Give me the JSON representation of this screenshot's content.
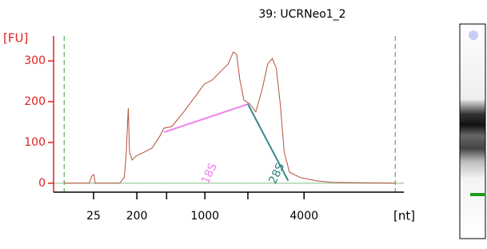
{
  "chart_data": {
    "type": "line",
    "title": "39: UCRNeo1_2",
    "ylabel": "[FU]",
    "xlabel": "[nt]",
    "x": [
      18.6,
      22.4,
      22.8,
      23.1,
      23.3,
      27.0,
      27.7,
      28.0,
      28.3,
      28.5,
      28.9,
      29.5,
      30.7,
      31.9,
      33.1,
      33.7,
      34.9,
      36.7,
      38.5,
      39.8,
      41.0,
      42.2,
      43.4,
      44.2,
      44.7,
      45.2,
      45.8,
      46.7,
      47.6,
      48.6,
      49.4,
      50.1,
      50.7,
      51.3,
      51.9,
      52.7,
      54.3,
      56.7,
      59.1,
      68.7
    ],
    "values": [
      0,
      0,
      18,
      21,
      0,
      0,
      14,
      76,
      184,
      76,
      57,
      67,
      76,
      86,
      116,
      135,
      139,
      175,
      214,
      243,
      253,
      273,
      292,
      322,
      316,
      253,
      204,
      194,
      175,
      233,
      292,
      306,
      282,
      194,
      76,
      27,
      14,
      6,
      2,
      0
    ],
    "color": "#b5503a",
    "xlim": [
      17,
      70
    ],
    "ylim": [
      -22,
      361
    ],
    "yticks": [
      0,
      100,
      200,
      300
    ],
    "xticks": [
      {
        "value": 23.05,
        "label": "25"
      },
      {
        "value": 29.6,
        "label": "200"
      },
      {
        "value": 39.9,
        "label": "1000"
      },
      {
        "value": 54.9,
        "label": "4000"
      }
    ],
    "minor_xticks": [
      34.1,
      46.4
    ],
    "markers": [
      18.6,
      68.7
    ],
    "annotations": [
      {
        "text": "18S",
        "x": 40.6,
        "y": 0,
        "color": "#ee82ee"
      },
      {
        "text": "28S",
        "x": 50.8,
        "y": 0,
        "color": "#2f7f7f"
      }
    ],
    "fragment_lines": [
      {
        "x1": 33.7,
        "y1": 125,
        "x2": 46.4,
        "y2": 194,
        "color": "#ee82ee"
      },
      {
        "x1": 46.4,
        "y1": 194,
        "x2": 52.5,
        "y2": 6,
        "color": "#3a8a8a"
      }
    ]
  }
}
